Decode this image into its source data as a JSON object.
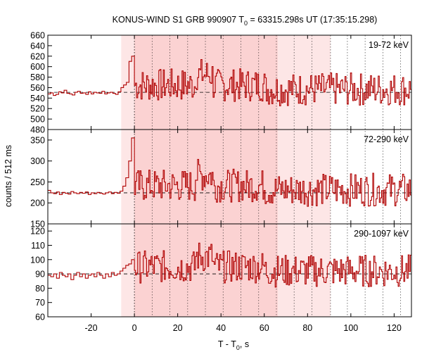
{
  "chart_data": {
    "type": "line",
    "title": "KONUS-WIND S1 GRB 990907 T",
    "title_sub": "0",
    "title_rest": " = 63315.298s UT (17:35:15.298)",
    "xlabel": "T - T",
    "xlabel_sub": "0",
    "xlabel_rest": ", s",
    "ylabel": "counts / 512 ms",
    "xlim": [
      -40,
      128
    ],
    "xticks": [
      -20,
      0,
      20,
      40,
      60,
      80,
      100,
      120
    ],
    "shade_outer": [
      -6.1,
      90.6
    ],
    "shade_inner": [
      0,
      66.2
    ],
    "colors": {
      "line": "#b00000",
      "shade_outer": "#fde6e6",
      "shade_inner": "#fbd2d2"
    },
    "panels": [
      {
        "band": "19-72 keV",
        "ylim": [
          480,
          660
        ],
        "yticks": [
          480,
          500,
          520,
          540,
          560,
          580,
          600,
          620,
          640,
          660
        ],
        "background": 551,
        "precursor": [
          548,
          550,
          545,
          547,
          552,
          550,
          555,
          549,
          548,
          546,
          551,
          553,
          549,
          550,
          547,
          552,
          548,
          551,
          550,
          549,
          553,
          548,
          550,
          551,
          549,
          547,
          552,
          560,
          565,
          570,
          610,
          620
        ]
      },
      {
        "band": "72-290 keV",
        "ylim": [
          150,
          375
        ],
        "yticks": [
          150,
          200,
          250,
          300,
          350
        ],
        "background": 224,
        "precursor": [
          230,
          224,
          222,
          226,
          220,
          225,
          223,
          221,
          227,
          224,
          222,
          225,
          223,
          226,
          220,
          224,
          222,
          225,
          223,
          221,
          224,
          226,
          222,
          225,
          223,
          228,
          240,
          260,
          300,
          355
        ]
      },
      {
        "band": "290-1097 keV",
        "ylim": [
          60,
          125
        ],
        "yticks": [
          60,
          70,
          80,
          90,
          100,
          110,
          120
        ],
        "background": 90,
        "precursor": [
          89,
          88,
          90,
          87,
          91,
          89,
          88,
          90,
          86,
          89,
          91,
          88,
          90,
          87,
          89,
          90,
          88,
          91,
          89,
          87,
          90,
          88,
          91,
          89,
          90,
          92,
          94,
          96,
          97,
          100
        ]
      }
    ]
  }
}
